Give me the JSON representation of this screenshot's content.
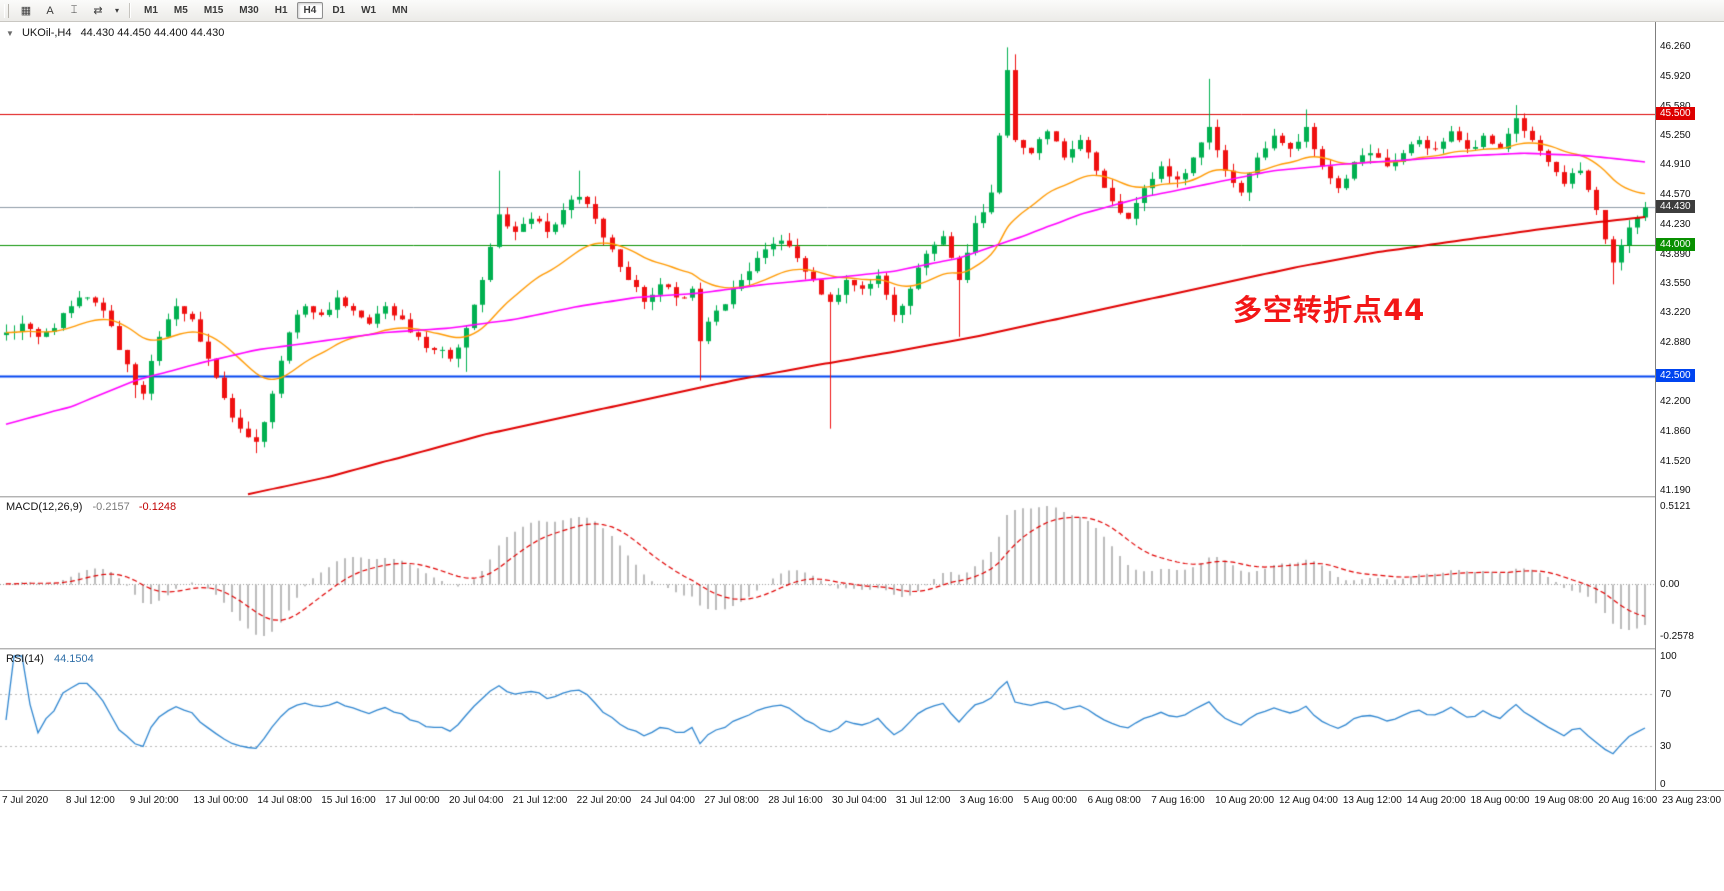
{
  "toolbar": {
    "tool_icons": [
      {
        "name": "chart-window-icon",
        "glyph": "▦"
      },
      {
        "name": "text-label-icon",
        "glyph": "A"
      },
      {
        "name": "text-cursor-icon",
        "glyph": "⌶"
      },
      {
        "name": "auto-scroll-icon",
        "glyph": "⇄"
      },
      {
        "name": "dropdown-caret-icon",
        "glyph": "▾"
      }
    ],
    "timeframes": [
      "M1",
      "M5",
      "M15",
      "M30",
      "H1",
      "H4",
      "D1",
      "W1",
      "MN"
    ],
    "active_timeframe": "H4"
  },
  "icons": {
    "collapse": "▼"
  },
  "chart_data": [
    {
      "type": "candlestick",
      "title": "UKOil-,H4",
      "ohlc_text": "44.430 44.450 44.400 44.430",
      "ohlc_current": {
        "open": 44.43,
        "high": 44.45,
        "low": 44.4,
        "close": 44.43
      },
      "annotation": {
        "text": "多空转折点44",
        "color": "#f31717"
      },
      "price_range": {
        "min": 41.13,
        "max": 46.55
      },
      "y_ticks": [
        46.26,
        45.92,
        45.58,
        45.25,
        44.91,
        44.57,
        44.23,
        43.89,
        43.55,
        43.22,
        42.88,
        42.54,
        42.2,
        41.86,
        41.52,
        41.19
      ],
      "x_labels": [
        "7 Jul 2020",
        "8 Jul 12:00",
        "9 Jul 20:00",
        "13 Jul 00:00",
        "14 Jul 08:00",
        "15 Jul 16:00",
        "17 Jul 00:00",
        "20 Jul 04:00",
        "21 Jul 12:00",
        "22 Jul 20:00",
        "24 Jul 04:00",
        "27 Jul 08:00",
        "28 Jul 16:00",
        "30 Jul 04:00",
        "31 Jul 12:00",
        "3 Aug 16:00",
        "5 Aug 00:00",
        "6 Aug 08:00",
        "7 Aug 16:00",
        "10 Aug 20:00",
        "12 Aug 04:00",
        "13 Aug 12:00",
        "14 Aug 20:00",
        "18 Aug 00:00",
        "19 Aug 08:00",
        "20 Aug 16:00",
        "23 Aug 23:00"
      ],
      "bars_total": 204,
      "jitter": 0.055,
      "colors": {
        "up": "#00b050",
        "down": "#ef1010"
      },
      "close_anchors": [
        [
          0,
          43.0
        ],
        [
          2,
          43.1
        ],
        [
          4,
          42.95
        ],
        [
          6,
          43.05
        ],
        [
          8,
          43.3
        ],
        [
          10,
          43.4
        ],
        [
          12,
          43.25
        ],
        [
          14,
          42.8
        ],
        [
          16,
          42.4
        ],
        [
          17,
          42.3
        ],
        [
          19,
          42.95
        ],
        [
          21,
          43.3
        ],
        [
          23,
          43.15
        ],
        [
          25,
          42.7
        ],
        [
          27,
          42.25
        ],
        [
          29,
          41.9
        ],
        [
          31,
          41.75
        ],
        [
          33,
          42.3
        ],
        [
          35,
          43.0
        ],
        [
          37,
          43.3
        ],
        [
          39,
          43.2
        ],
        [
          41,
          43.4
        ],
        [
          43,
          43.25
        ],
        [
          45,
          43.1
        ],
        [
          47,
          43.3
        ],
        [
          49,
          43.15
        ],
        [
          51,
          42.95
        ],
        [
          53,
          42.8
        ],
        [
          55,
          42.7
        ],
        [
          57,
          43.05
        ],
        [
          59,
          43.6
        ],
        [
          61,
          44.35
        ],
        [
          63,
          44.15
        ],
        [
          65,
          44.3
        ],
        [
          67,
          44.15
        ],
        [
          69,
          44.4
        ],
        [
          71,
          44.55
        ],
        [
          73,
          44.3
        ],
        [
          75,
          43.95
        ],
        [
          77,
          43.6
        ],
        [
          79,
          43.35
        ],
        [
          81,
          43.55
        ],
        [
          83,
          43.4
        ],
        [
          85,
          43.5
        ],
        [
          86,
          42.9
        ],
        [
          88,
          43.25
        ],
        [
          90,
          43.5
        ],
        [
          92,
          43.7
        ],
        [
          94,
          43.95
        ],
        [
          96,
          44.05
        ],
        [
          98,
          43.85
        ],
        [
          100,
          43.6
        ],
        [
          102,
          43.35
        ],
        [
          104,
          43.6
        ],
        [
          106,
          43.5
        ],
        [
          108,
          43.65
        ],
        [
          110,
          43.2
        ],
        [
          112,
          43.5
        ],
        [
          114,
          43.9
        ],
        [
          116,
          44.1
        ],
        [
          118,
          43.6
        ],
        [
          120,
          44.25
        ],
        [
          122,
          44.6
        ],
        [
          124,
          46.0
        ],
        [
          125,
          45.2
        ],
        [
          127,
          45.05
        ],
        [
          129,
          45.3
        ],
        [
          131,
          45.0
        ],
        [
          133,
          45.2
        ],
        [
          135,
          44.85
        ],
        [
          137,
          44.5
        ],
        [
          139,
          44.3
        ],
        [
          141,
          44.65
        ],
        [
          143,
          44.9
        ],
        [
          145,
          44.75
        ],
        [
          147,
          45.0
        ],
        [
          149,
          45.35
        ],
        [
          151,
          44.85
        ],
        [
          153,
          44.6
        ],
        [
          155,
          45.0
        ],
        [
          157,
          45.25
        ],
        [
          159,
          45.1
        ],
        [
          161,
          45.35
        ],
        [
          163,
          44.9
        ],
        [
          165,
          44.65
        ],
        [
          167,
          44.95
        ],
        [
          169,
          45.05
        ],
        [
          171,
          44.9
        ],
        [
          173,
          45.05
        ],
        [
          175,
          45.2
        ],
        [
          177,
          45.1
        ],
        [
          179,
          45.3
        ],
        [
          181,
          45.1
        ],
        [
          183,
          45.25
        ],
        [
          185,
          45.1
        ],
        [
          187,
          45.45
        ],
        [
          189,
          45.2
        ],
        [
          191,
          44.95
        ],
        [
          193,
          44.7
        ],
        [
          195,
          44.85
        ],
        [
          197,
          44.4
        ],
        [
          199,
          43.8
        ],
        [
          201,
          44.2
        ],
        [
          203,
          44.43
        ]
      ],
      "wick_overrides": [
        [
          16,
          "low",
          42.25
        ],
        [
          29,
          "low",
          41.95
        ],
        [
          31,
          "low",
          41.62
        ],
        [
          57,
          "low",
          42.55
        ],
        [
          61,
          "high",
          44.85
        ],
        [
          71,
          "high",
          44.85
        ],
        [
          86,
          "low",
          42.45
        ],
        [
          102,
          "low",
          41.9
        ],
        [
          118,
          "low",
          42.95
        ],
        [
          124,
          "high",
          46.26
        ],
        [
          125,
          "high",
          46.18
        ],
        [
          149,
          "high",
          45.9
        ],
        [
          161,
          "high",
          45.55
        ],
        [
          187,
          "high",
          45.6
        ],
        [
          199,
          "low",
          43.55
        ]
      ],
      "hlines": [
        {
          "price": 45.5,
          "label": "45.500",
          "line": "#dd0000",
          "badge": "#dd0000",
          "width": 1
        },
        {
          "price": 44.43,
          "label": "44.430",
          "line": "#8c9aa6",
          "badge": "#3d3d3d",
          "width": 1
        },
        {
          "price": 44.0,
          "label": "44.000",
          "line": "#089000",
          "badge": "#089000",
          "width": 1
        },
        {
          "price": 42.5,
          "label": "42.500",
          "line": "#0044f0",
          "badge": "#0044f0",
          "width": 2
        }
      ],
      "moving_averages": [
        {
          "name": "ma-fast-orange",
          "color": "#ff9900",
          "type": "ema",
          "period": 20,
          "width": 1.4
        },
        {
          "name": "ma-mid-magenta",
          "color": "#ff00ff",
          "type": "anchors",
          "width": 1.6,
          "anchors": [
            [
              0,
              41.95
            ],
            [
              8,
              42.15
            ],
            [
              16,
              42.45
            ],
            [
              24,
              42.65
            ],
            [
              31,
              42.8
            ],
            [
              39,
              42.9
            ],
            [
              47,
              43.0
            ],
            [
              55,
              43.05
            ],
            [
              63,
              43.15
            ],
            [
              71,
              43.3
            ],
            [
              78,
              43.4
            ],
            [
              86,
              43.45
            ],
            [
              94,
              43.55
            ],
            [
              102,
              43.62
            ],
            [
              110,
              43.7
            ],
            [
              118,
              43.85
            ],
            [
              126,
              44.1
            ],
            [
              133,
              44.35
            ],
            [
              141,
              44.55
            ],
            [
              149,
              44.7
            ],
            [
              157,
              44.85
            ],
            [
              165,
              44.92
            ],
            [
              173,
              44.97
            ],
            [
              181,
              45.02
            ],
            [
              188,
              45.05
            ],
            [
              196,
              45.02
            ],
            [
              203,
              44.95
            ]
          ]
        },
        {
          "name": "ma-slow-red",
          "color": "#e00000",
          "type": "anchors",
          "width": 2,
          "anchors": [
            [
              30,
              41.15
            ],
            [
              40,
              41.35
            ],
            [
              50,
              41.6
            ],
            [
              60,
              41.85
            ],
            [
              70,
              42.05
            ],
            [
              80,
              42.25
            ],
            [
              90,
              42.45
            ],
            [
              100,
              42.62
            ],
            [
              110,
              42.78
            ],
            [
              120,
              42.95
            ],
            [
              130,
              43.15
            ],
            [
              140,
              43.35
            ],
            [
              150,
              43.55
            ],
            [
              160,
              43.75
            ],
            [
              170,
              43.92
            ],
            [
              180,
              44.05
            ],
            [
              190,
              44.18
            ],
            [
              196,
              44.25
            ],
            [
              203,
              44.32
            ]
          ]
        }
      ]
    },
    {
      "type": "macd_histogram",
      "label": "MACD(12,26,9)",
      "value_macd": "-0.2157",
      "value_signal": "-0.1248",
      "params": {
        "fast": 12,
        "slow": 26,
        "signal": 9
      },
      "y_axis": {
        "top": "0.5121",
        "zero": "0.00",
        "bottom": "-0.2578"
      },
      "colors": {
        "histogram": "#bcbcbc",
        "signal": "#e00000"
      }
    },
    {
      "type": "rsi",
      "label": "RSI(14)",
      "value": "44.1504",
      "period": 14,
      "levels": [
        70,
        30
      ],
      "y_axis": {
        "ticks": [
          100,
          70,
          30,
          0
        ]
      },
      "color": "#2f86d0"
    }
  ]
}
